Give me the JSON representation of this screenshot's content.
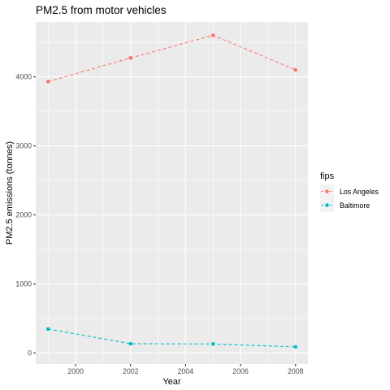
{
  "chart_data": {
    "type": "line",
    "title": "PM2.5 from motor vehicles",
    "xlabel": "Year",
    "ylabel": "PM2.5 emissions (tonnes)",
    "x": [
      1999,
      2002,
      2005,
      2008
    ],
    "xticks": [
      2000,
      2002,
      2004,
      2006,
      2008
    ],
    "yticks": [
      0,
      1000,
      2000,
      3000,
      4000
    ],
    "xlim": [
      1998.55,
      2008.45
    ],
    "ylim": [
      -160,
      4795
    ],
    "grid": true,
    "legend_position": "right",
    "legend_title": "fips",
    "series": [
      {
        "name": "Los Angeles",
        "values": [
          3931,
          4274,
          4601,
          4101
        ],
        "color": "#F8766D"
      },
      {
        "name": "Baltimore",
        "values": [
          347,
          134,
          130,
          88
        ],
        "color": "#00BFC4"
      }
    ]
  },
  "colors": {
    "panel": "#EBEBEB",
    "grid": "#FFFFFF",
    "tick_text": "#4D4D4D"
  }
}
